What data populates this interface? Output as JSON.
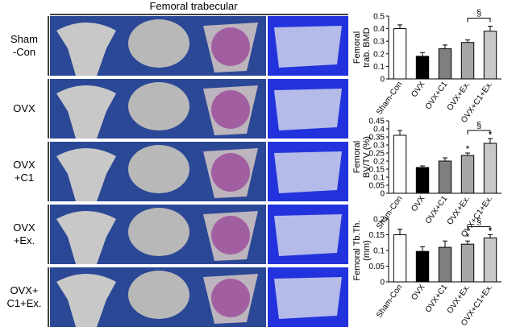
{
  "figure": {
    "title": "Femoral trabecular",
    "row_labels": [
      [
        "Sham",
        "-Con"
      ],
      [
        "OVX"
      ],
      [
        "OVX",
        "+C1"
      ],
      [
        "OVX",
        "+Ex."
      ],
      [
        "OVX+",
        "C1+Ex."
      ]
    ]
  },
  "chart_data": [
    {
      "type": "bar",
      "ylabel": [
        "Femoral",
        "trab. BMD"
      ],
      "categories": [
        "Sham-Con",
        "OVX",
        "OVX+C1",
        "OVX+Ex.",
        "OVX+C1+Ex."
      ],
      "values": [
        0.4,
        0.18,
        0.24,
        0.29,
        0.38
      ],
      "errors": [
        0.03,
        0.03,
        0.03,
        0.02,
        0.04
      ],
      "colors": [
        "#ffffff",
        "#000000",
        "#7f7f7f",
        "#a6a6a6",
        "#c8c8c8"
      ],
      "value_annotations": [
        null,
        null,
        null,
        null,
        null
      ],
      "bracket_label": "§",
      "ylim": [
        0,
        0.5
      ],
      "yticks": [
        0,
        0.1,
        0.2,
        0.3,
        0.4,
        0.5
      ]
    },
    {
      "type": "bar",
      "ylabel": [
        "Femoral",
        "BV/TV (%)"
      ],
      "categories": [
        "Sham-Con",
        "OVX",
        "OVX+C1",
        "OVX+Ex.",
        "OVX+C1+Ex."
      ],
      "values": [
        0.36,
        0.16,
        0.2,
        0.235,
        0.31
      ],
      "errors": [
        0.03,
        0.01,
        0.02,
        0.015,
        0.03
      ],
      "colors": [
        "#ffffff",
        "#000000",
        "#7f7f7f",
        "#a6a6a6",
        "#c8c8c8"
      ],
      "value_annotations": [
        null,
        null,
        null,
        "*",
        "*"
      ],
      "bracket_label": "§",
      "ylim": [
        0,
        0.45
      ],
      "yticks": [
        0,
        0.05,
        0.1,
        0.15,
        0.2,
        0.25,
        0.3,
        0.35,
        0.4,
        0.45
      ]
    },
    {
      "type": "bar",
      "ylabel": [
        "Femoral Tb.Th.",
        "(mm)"
      ],
      "categories": [
        "Sham-Con",
        "OVX",
        "OVX+C1",
        "OVX+Ex.",
        "OVX+C1+Ex."
      ],
      "values": [
        0.15,
        0.097,
        0.11,
        0.12,
        0.14
      ],
      "errors": [
        0.018,
        0.015,
        0.02,
        0.01,
        0.01
      ],
      "colors": [
        "#ffffff",
        "#000000",
        "#7f7f7f",
        "#a6a6a6",
        "#c8c8c8"
      ],
      "value_annotations": [
        null,
        null,
        null,
        "*",
        "*"
      ],
      "bracket_label": "§",
      "ylim": [
        0,
        0.2
      ],
      "yticks": [
        0,
        0.05,
        0.1,
        0.15,
        0.2
      ]
    }
  ]
}
